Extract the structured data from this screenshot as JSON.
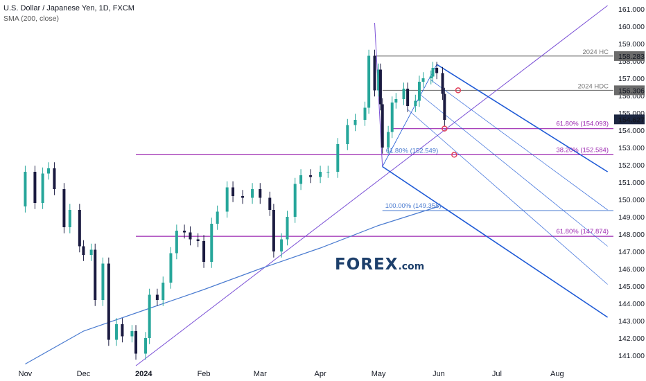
{
  "header": {
    "title": "U.S. Dollar / Japanese Yen, 1D, FXCM",
    "indicator": "SMA (200, close)"
  },
  "logo": {
    "left": "F",
    "mid": "O",
    "right": "REX",
    "suffix": ".com"
  },
  "colors": {
    "bull": "#26a69a",
    "bear": "#1a1a40",
    "sma": "#4a7bd0",
    "fib": "#9c27b0",
    "pitchfork": "#1e5ad6",
    "trend": "#7b50d6",
    "hline": "#666666",
    "circle": "#e0405a"
  },
  "chart_data": {
    "type": "candlestick",
    "symbol": "USD/JPY",
    "timeframe": "1D",
    "ylim": [
      140.4,
      161.2
    ],
    "y_ticks": [
      141,
      142,
      143,
      144,
      145,
      146,
      147,
      148,
      149,
      150,
      151,
      152,
      153,
      154,
      155,
      156,
      157,
      158,
      159,
      160,
      161
    ],
    "y_tick_labels": [
      "141.000",
      "142.000",
      "143.000",
      "144.000",
      "145.000",
      "146.000",
      "147.000",
      "148.000",
      "149.000",
      "150.000",
      "151.000",
      "152.000",
      "153.000",
      "154.000",
      "155.000",
      "156.000",
      "157.000",
      "158.000",
      "159.000",
      "160.000",
      "161.000"
    ],
    "x_labels": [
      {
        "text": "Nov",
        "bold": false,
        "date": "2023-11-01"
      },
      {
        "text": "Dec",
        "bold": false,
        "date": "2023-12-01"
      },
      {
        "text": "2024",
        "bold": true,
        "date": "2024-01-01"
      },
      {
        "text": "Feb",
        "bold": false,
        "date": "2024-02-01"
      },
      {
        "text": "Mar",
        "bold": false,
        "date": "2024-03-01"
      },
      {
        "text": "Apr",
        "bold": false,
        "date": "2024-04-01"
      },
      {
        "text": "May",
        "bold": false,
        "date": "2024-05-01"
      },
      {
        "text": "Jun",
        "bold": false,
        "date": "2024-06-01"
      },
      {
        "text": "Jul",
        "bold": false,
        "date": "2024-07-01"
      },
      {
        "text": "Aug",
        "bold": false,
        "date": "2024-08-01"
      }
    ],
    "price_series": [
      {
        "date": "2023-10-27",
        "price": 149.6
      },
      {
        "date": "2023-11-01",
        "price": 151.6
      },
      {
        "date": "2023-11-06",
        "price": 149.8
      },
      {
        "date": "2023-11-10",
        "price": 151.5
      },
      {
        "date": "2023-11-13",
        "price": 151.8
      },
      {
        "date": "2023-11-16",
        "price": 150.6
      },
      {
        "date": "2023-11-21",
        "price": 148.4
      },
      {
        "date": "2023-11-24",
        "price": 149.4
      },
      {
        "date": "2023-11-29",
        "price": 147.3
      },
      {
        "date": "2023-12-01",
        "price": 146.8
      },
      {
        "date": "2023-12-05",
        "price": 147.1
      },
      {
        "date": "2023-12-07",
        "price": 144.2
      },
      {
        "date": "2023-12-11",
        "price": 146.3
      },
      {
        "date": "2023-12-14",
        "price": 141.9
      },
      {
        "date": "2023-12-18",
        "price": 142.8
      },
      {
        "date": "2023-12-21",
        "price": 142.1
      },
      {
        "date": "2023-12-26",
        "price": 142.4
      },
      {
        "date": "2023-12-28",
        "price": 141.1
      },
      {
        "date": "2024-01-02",
        "price": 142.0
      },
      {
        "date": "2024-01-04",
        "price": 144.5
      },
      {
        "date": "2024-01-08",
        "price": 144.2
      },
      {
        "date": "2024-01-11",
        "price": 145.2
      },
      {
        "date": "2024-01-15",
        "price": 146.9
      },
      {
        "date": "2024-01-18",
        "price": 148.2
      },
      {
        "date": "2024-01-22",
        "price": 148.1
      },
      {
        "date": "2024-01-25",
        "price": 147.7
      },
      {
        "date": "2024-01-29",
        "price": 147.6
      },
      {
        "date": "2024-02-01",
        "price": 146.4
      },
      {
        "date": "2024-02-05",
        "price": 148.6
      },
      {
        "date": "2024-02-08",
        "price": 149.3
      },
      {
        "date": "2024-02-13",
        "price": 150.7
      },
      {
        "date": "2024-02-16",
        "price": 150.2
      },
      {
        "date": "2024-02-21",
        "price": 150.1
      },
      {
        "date": "2024-02-26",
        "price": 150.6
      },
      {
        "date": "2024-03-01",
        "price": 150.1
      },
      {
        "date": "2024-03-06",
        "price": 149.4
      },
      {
        "date": "2024-03-08",
        "price": 147.0
      },
      {
        "date": "2024-03-12",
        "price": 147.7
      },
      {
        "date": "2024-03-15",
        "price": 149.0
      },
      {
        "date": "2024-03-19",
        "price": 150.9
      },
      {
        "date": "2024-03-22",
        "price": 151.4
      },
      {
        "date": "2024-03-27",
        "price": 151.3
      },
      {
        "date": "2024-04-01",
        "price": 151.6
      },
      {
        "date": "2024-04-05",
        "price": 151.6
      },
      {
        "date": "2024-04-10",
        "price": 153.2
      },
      {
        "date": "2024-04-15",
        "price": 154.3
      },
      {
        "date": "2024-04-19",
        "price": 154.6
      },
      {
        "date": "2024-04-24",
        "price": 155.3
      },
      {
        "date": "2024-04-26",
        "price": 158.3
      },
      {
        "date": "2024-04-29",
        "price": 156.3
      },
      {
        "date": "2024-05-01",
        "price": 157.5
      },
      {
        "date": "2024-05-02",
        "price": 155.5
      },
      {
        "date": "2024-05-03",
        "price": 153.0
      },
      {
        "date": "2024-05-06",
        "price": 153.9
      },
      {
        "date": "2024-05-08",
        "price": 155.6
      },
      {
        "date": "2024-05-10",
        "price": 155.8
      },
      {
        "date": "2024-05-14",
        "price": 156.4
      },
      {
        "date": "2024-05-16",
        "price": 155.4
      },
      {
        "date": "2024-05-20",
        "price": 155.7
      },
      {
        "date": "2024-05-22",
        "price": 156.8
      },
      {
        "date": "2024-05-24",
        "price": 157.0
      },
      {
        "date": "2024-05-28",
        "price": 157.1
      },
      {
        "date": "2024-05-29",
        "price": 157.6
      },
      {
        "date": "2024-05-31",
        "price": 157.3
      },
      {
        "date": "2024-06-03",
        "price": 156.1
      },
      {
        "date": "2024-06-04",
        "price": 154.6
      }
    ],
    "sma200": [
      {
        "date": "2023-11-01",
        "value": 140.5
      },
      {
        "date": "2023-12-01",
        "value": 142.4
      },
      {
        "date": "2024-01-01",
        "value": 143.6
      },
      {
        "date": "2024-02-01",
        "value": 144.8
      },
      {
        "date": "2024-03-01",
        "value": 146.0
      },
      {
        "date": "2024-04-01",
        "value": 147.2
      },
      {
        "date": "2024-05-01",
        "value": 148.5
      },
      {
        "date": "2024-06-01",
        "value": 149.6
      }
    ],
    "horizontal_levels": [
      {
        "name": "2024 HC",
        "value": 158.283,
        "label": "2024 HC",
        "price_label": "158.283",
        "kind": "high",
        "from": "2024-04-29"
      },
      {
        "name": "2024 HDC",
        "value": 156.306,
        "label": "2024 HDC",
        "price_label": "156.306",
        "kind": "high",
        "from": "2024-05-03"
      },
      {
        "name": "61.80% (154.093)",
        "value": 154.093,
        "label": "61.80% (154.093)",
        "kind": "fib",
        "from": "2024-05-08"
      },
      {
        "name": "38.20% (152.584)",
        "value": 152.584,
        "label": "38.20% (152.584)",
        "kind": "fib",
        "from": "2023-12-28"
      },
      {
        "name": "61.80% (152.549)",
        "value": 152.549,
        "label": "61.80% (152.549)",
        "kind": "fib-partial",
        "from": "2024-05-03"
      },
      {
        "name": "100.00% (149.358)",
        "value": 149.358,
        "label": "100.00% (149.358)",
        "kind": "blue",
        "from": "2024-05-03"
      },
      {
        "name": "61.80% (147.874)",
        "value": 147.874,
        "label": "61.80% (147.874)",
        "kind": "fib",
        "from": "2023-12-28"
      }
    ],
    "current_price": {
      "value": 154.627,
      "label": "154.627"
    },
    "trendlines": [
      {
        "name": "support-trendline",
        "from": {
          "date": "2023-12-28",
          "price": 140.4
        },
        "to": {
          "date": "2024-08-27",
          "price": 161.2
        }
      },
      {
        "name": "pitchfork-handle",
        "from": {
          "date": "2024-04-29",
          "price": 160.2
        },
        "to": {
          "date": "2024-05-03",
          "price": 151.9
        }
      }
    ],
    "pitchfork": {
      "upper": {
        "from": {
          "date": "2024-05-31",
          "price": 157.8
        },
        "to": {
          "date": "2024-08-27",
          "price": 151.6
        }
      },
      "lower": {
        "from": {
          "date": "2024-05-03",
          "price": 151.9
        },
        "to": {
          "date": "2024-08-27",
          "price": 143.2
        }
      },
      "inner": [
        {
          "from": {
            "date": "2024-05-28",
            "price": 156.9
          },
          "to": {
            "date": "2024-08-27",
            "price": 149.4
          }
        },
        {
          "from": {
            "date": "2024-05-22",
            "price": 156.1
          },
          "to": {
            "date": "2024-08-27",
            "price": 147.3
          }
        },
        {
          "from": {
            "date": "2024-05-16",
            "price": 155.2
          },
          "to": {
            "date": "2024-08-27",
            "price": 145.1
          }
        }
      ]
    },
    "markers": [
      {
        "date": "2024-06-11",
        "price": 156.306
      },
      {
        "date": "2024-06-04",
        "price": 154.093
      },
      {
        "date": "2024-06-09",
        "price": 152.584
      }
    ]
  }
}
